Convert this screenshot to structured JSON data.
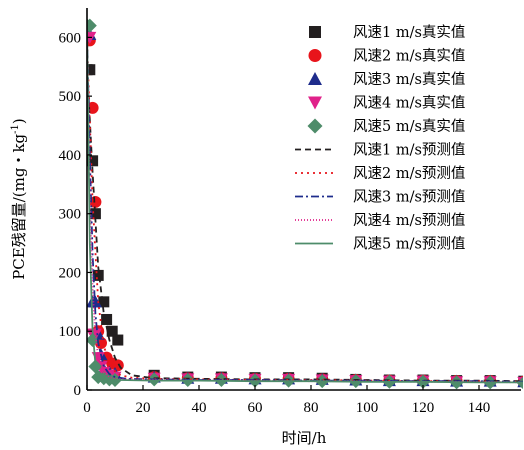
{
  "chart_data": {
    "type": "line",
    "xlabel": "时间/h",
    "ylabel": "PCE残留量/(mg·kg⁻¹)",
    "ylabel_parts": {
      "base": "PCE残留量/(mg・kg",
      "exp": "-1",
      "close": ")"
    },
    "xlim": [
      0,
      155
    ],
    "ylim": [
      0,
      650
    ],
    "xticks": [
      0,
      20,
      40,
      60,
      80,
      100,
      120,
      140
    ],
    "yticks": [
      0,
      100,
      200,
      300,
      400,
      500,
      600
    ],
    "legend_position": "top-right",
    "series": [
      {
        "name": "风速1 m/s真实值",
        "kind": "observed",
        "marker": "square",
        "color": "#231f20",
        "points": [
          [
            0,
            545
          ],
          [
            1,
            545
          ],
          [
            2,
            390
          ],
          [
            3,
            300
          ],
          [
            4,
            195
          ],
          [
            6,
            150
          ],
          [
            7,
            120
          ],
          [
            9,
            100
          ],
          [
            11,
            85
          ],
          [
            24,
            25
          ],
          [
            36,
            22
          ],
          [
            48,
            22
          ],
          [
            60,
            21
          ],
          [
            72,
            21
          ],
          [
            84,
            20
          ],
          [
            96,
            18
          ],
          [
            108,
            17
          ],
          [
            120,
            17
          ],
          [
            132,
            16
          ],
          [
            144,
            16
          ],
          [
            156,
            15
          ]
        ]
      },
      {
        "name": "风速2 m/s真实值",
        "kind": "observed",
        "marker": "circle",
        "color": "#e8141b",
        "points": [
          [
            0,
            595
          ],
          [
            1,
            595
          ],
          [
            2,
            480
          ],
          [
            3,
            320
          ],
          [
            4,
            100
          ],
          [
            5,
            80
          ],
          [
            7,
            55
          ],
          [
            9,
            45
          ],
          [
            11,
            42
          ],
          [
            24,
            22
          ],
          [
            36,
            20
          ],
          [
            48,
            20
          ],
          [
            60,
            19
          ],
          [
            72,
            19
          ],
          [
            84,
            18
          ],
          [
            96,
            17
          ],
          [
            108,
            16
          ],
          [
            120,
            16
          ],
          [
            132,
            15
          ],
          [
            144,
            15
          ],
          [
            156,
            14
          ]
        ]
      },
      {
        "name": "风速3 m/s真实值",
        "kind": "observed",
        "marker": "triangle-up",
        "color": "#1e2c8c",
        "points": [
          [
            0,
            605
          ],
          [
            1,
            605
          ],
          [
            2,
            150
          ],
          [
            3,
            150
          ],
          [
            4,
            95
          ],
          [
            5,
            60
          ],
          [
            6,
            35
          ],
          [
            8,
            30
          ],
          [
            10,
            28
          ],
          [
            24,
            22
          ],
          [
            36,
            20
          ],
          [
            48,
            20
          ],
          [
            60,
            19
          ],
          [
            72,
            19
          ],
          [
            84,
            18
          ],
          [
            96,
            17
          ],
          [
            108,
            16
          ],
          [
            120,
            16
          ],
          [
            132,
            15
          ],
          [
            144,
            15
          ],
          [
            156,
            14
          ]
        ]
      },
      {
        "name": "风速4 m/s真实值",
        "kind": "observed",
        "marker": "triangle-down",
        "color": "#e0218a",
        "points": [
          [
            0,
            600
          ],
          [
            1,
            600
          ],
          [
            2,
            95
          ],
          [
            3,
            95
          ],
          [
            4,
            55
          ],
          [
            5,
            40
          ],
          [
            6,
            30
          ],
          [
            8,
            25
          ],
          [
            10,
            22
          ],
          [
            24,
            20
          ],
          [
            36,
            19
          ],
          [
            48,
            19
          ],
          [
            60,
            18
          ],
          [
            72,
            18
          ],
          [
            84,
            17
          ],
          [
            96,
            16
          ],
          [
            108,
            15
          ],
          [
            120,
            15
          ],
          [
            132,
            14
          ],
          [
            144,
            14
          ],
          [
            156,
            13
          ]
        ]
      },
      {
        "name": "风速5 m/s真实值",
        "kind": "observed",
        "marker": "diamond",
        "color": "#4e8c6a",
        "points": [
          [
            0,
            620
          ],
          [
            1,
            620
          ],
          [
            2,
            85
          ],
          [
            3,
            40
          ],
          [
            4,
            22
          ],
          [
            6,
            20
          ],
          [
            8,
            18
          ],
          [
            10,
            17
          ],
          [
            24,
            18
          ],
          [
            36,
            17
          ],
          [
            48,
            17
          ],
          [
            60,
            16
          ],
          [
            72,
            16
          ],
          [
            84,
            15
          ],
          [
            96,
            15
          ],
          [
            108,
            14
          ],
          [
            120,
            14
          ],
          [
            132,
            13
          ],
          [
            144,
            13
          ],
          [
            156,
            12
          ]
        ]
      },
      {
        "name": "风速1 m/s预测值",
        "kind": "predicted",
        "dash": "6,4",
        "color": "#231f20",
        "points": [
          [
            0,
            550
          ],
          [
            2,
            370
          ],
          [
            4,
            210
          ],
          [
            6,
            130
          ],
          [
            8,
            85
          ],
          [
            10,
            55
          ],
          [
            12,
            38
          ],
          [
            16,
            25
          ],
          [
            24,
            20
          ],
          [
            40,
            19
          ],
          [
            60,
            18
          ],
          [
            80,
            18
          ],
          [
            100,
            17
          ],
          [
            120,
            16
          ],
          [
            140,
            16
          ],
          [
            156,
            15
          ]
        ]
      },
      {
        "name": "风速2 m/s预测值",
        "kind": "predicted",
        "dash": "2,4",
        "color": "#e8141b",
        "points": [
          [
            0,
            600
          ],
          [
            2,
            320
          ],
          [
            4,
            150
          ],
          [
            6,
            75
          ],
          [
            8,
            45
          ],
          [
            10,
            32
          ],
          [
            12,
            25
          ],
          [
            16,
            21
          ],
          [
            24,
            19
          ],
          [
            40,
            18
          ],
          [
            60,
            17
          ],
          [
            80,
            17
          ],
          [
            100,
            16
          ],
          [
            120,
            15
          ],
          [
            140,
            15
          ],
          [
            156,
            14
          ]
        ]
      },
      {
        "name": "风速3 m/s预测值",
        "kind": "predicted",
        "dash": "8,3,2,3",
        "color": "#1e2c8c",
        "points": [
          [
            0,
            605
          ],
          [
            1,
            400
          ],
          [
            2,
            230
          ],
          [
            3,
            130
          ],
          [
            4,
            80
          ],
          [
            6,
            40
          ],
          [
            8,
            27
          ],
          [
            10,
            22
          ],
          [
            14,
            19
          ],
          [
            24,
            18
          ],
          [
            40,
            17
          ],
          [
            60,
            17
          ],
          [
            80,
            16
          ],
          [
            100,
            16
          ],
          [
            120,
            15
          ],
          [
            140,
            15
          ],
          [
            156,
            14
          ]
        ]
      },
      {
        "name": "风速4 m/s预测值",
        "kind": "predicted",
        "dash": "1,2",
        "color": "#e0218a",
        "points": [
          [
            0,
            600
          ],
          [
            1,
            330
          ],
          [
            2,
            170
          ],
          [
            3,
            95
          ],
          [
            4,
            55
          ],
          [
            6,
            30
          ],
          [
            8,
            22
          ],
          [
            10,
            19
          ],
          [
            14,
            18
          ],
          [
            24,
            17
          ],
          [
            40,
            16
          ],
          [
            60,
            16
          ],
          [
            80,
            15
          ],
          [
            100,
            15
          ],
          [
            120,
            14
          ],
          [
            140,
            14
          ],
          [
            156,
            13
          ]
        ]
      },
      {
        "name": "风速5 m/s预测值",
        "kind": "predicted",
        "dash": "",
        "color": "#4e8c6a",
        "points": [
          [
            0,
            620
          ],
          [
            1,
            250
          ],
          [
            2,
            100
          ],
          [
            3,
            45
          ],
          [
            4,
            28
          ],
          [
            6,
            20
          ],
          [
            8,
            18
          ],
          [
            12,
            17
          ],
          [
            24,
            16
          ],
          [
            40,
            16
          ],
          [
            60,
            15
          ],
          [
            80,
            15
          ],
          [
            100,
            14
          ],
          [
            120,
            14
          ],
          [
            140,
            13
          ],
          [
            156,
            13
          ]
        ]
      }
    ]
  }
}
